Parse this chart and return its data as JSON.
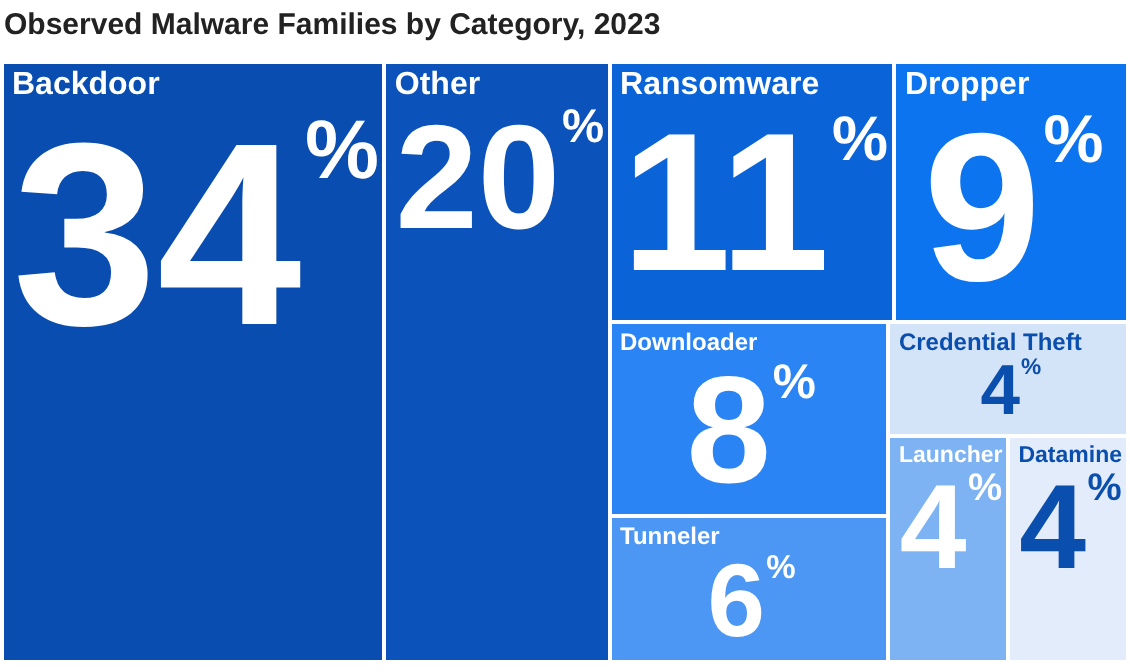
{
  "chart_data": {
    "type": "other",
    "title": "Observed Malware Families by Category, 2023",
    "categories": [
      "Backdoor",
      "Other",
      "Ransomware",
      "Dropper",
      "Downloader",
      "Tunneler",
      "Credential Theft",
      "Launcher",
      "Datamine"
    ],
    "values": [
      34,
      20,
      11,
      9,
      8,
      6,
      4,
      4,
      4
    ],
    "value_labels": [
      "34$^{%}$",
      "20$^{%}$",
      "11$^{%}$",
      "9$^{%}$",
      "8$^{%}$",
      "6$^{%}$",
      "4$^{%}$",
      "4$^{%}$",
      "4$^{%}$"
    ],
    "colors": [
      "#0a4db0",
      "#0b52ba",
      "#0a64d8",
      "#0b74ee",
      "#2b84f4",
      "#4c97f3",
      "#d3e3f8",
      "#7db2f3",
      "#e2ecfa"
    ]
  }
}
